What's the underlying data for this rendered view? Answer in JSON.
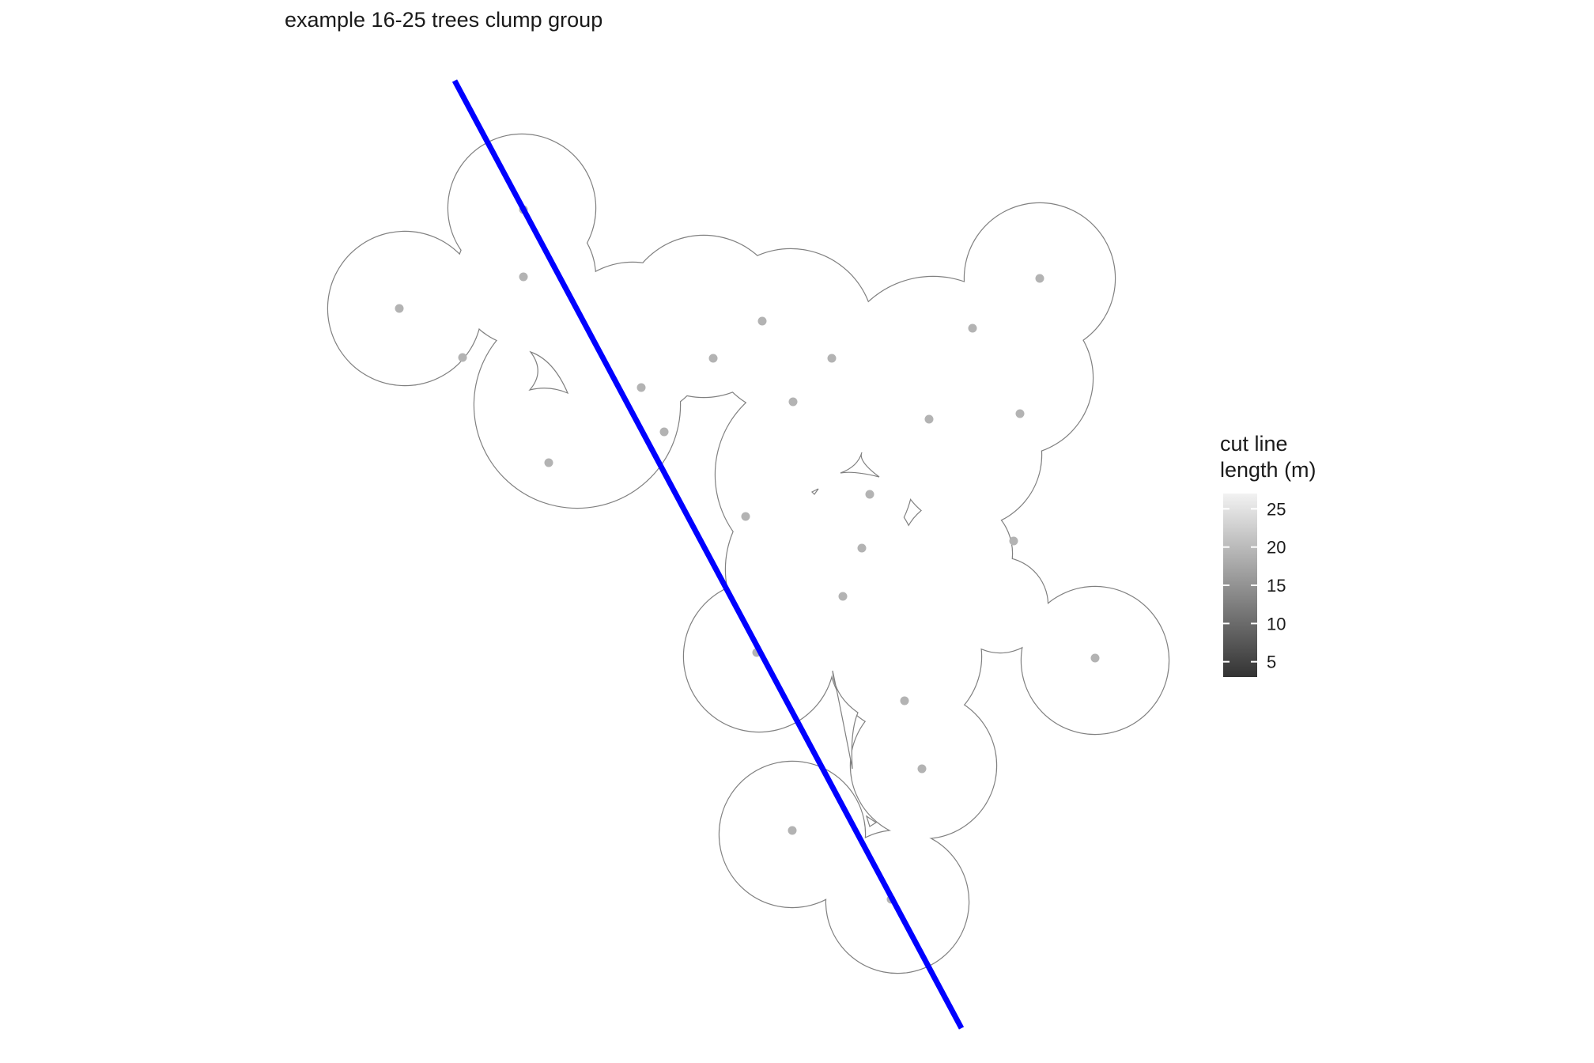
{
  "chart_data": {
    "type": "map",
    "title": "example 16-25 trees clump group",
    "legend": {
      "title_lines": [
        "cut line",
        "length (m)"
      ],
      "min": 3,
      "max": 27,
      "ticks": [
        5,
        10,
        15,
        20,
        25
      ],
      "color_low": "#333333",
      "color_high": "#f2f2f2"
    },
    "path_color": "#0000ff",
    "tree_point_color": "#b3b3b3",
    "outline_color": "#808080"
  }
}
